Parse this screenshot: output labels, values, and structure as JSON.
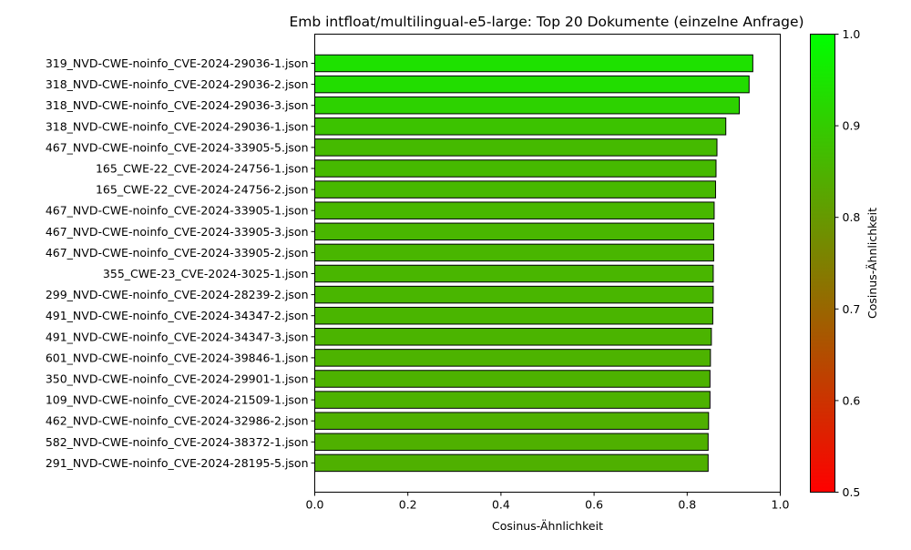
{
  "chart_data": {
    "type": "bar",
    "orientation": "horizontal",
    "title": "Emb intfloat/multilingual-e5-large: Top 20 Dokumente (einzelne Anfrage)",
    "xlabel": "Cosinus-Ähnlichkeit",
    "ylabel": "",
    "xlim": [
      0.0,
      1.0
    ],
    "xticks": [
      "0.0",
      "0.2",
      "0.4",
      "0.6",
      "0.8",
      "1.0"
    ],
    "grid": false,
    "categories": [
      "319_NVD-CWE-noinfo_CVE-2024-29036-1.json",
      "318_NVD-CWE-noinfo_CVE-2024-29036-2.json",
      "318_NVD-CWE-noinfo_CVE-2024-29036-3.json",
      "318_NVD-CWE-noinfo_CVE-2024-29036-1.json",
      "467_NVD-CWE-noinfo_CVE-2024-33905-5.json",
      "165_CWE-22_CVE-2024-24756-1.json",
      "165_CWE-22_CVE-2024-24756-2.json",
      "467_NVD-CWE-noinfo_CVE-2024-33905-1.json",
      "467_NVD-CWE-noinfo_CVE-2024-33905-3.json",
      "467_NVD-CWE-noinfo_CVE-2024-33905-2.json",
      "355_CWE-23_CVE-2024-3025-1.json",
      "299_NVD-CWE-noinfo_CVE-2024-28239-2.json",
      "491_NVD-CWE-noinfo_CVE-2024-34347-2.json",
      "491_NVD-CWE-noinfo_CVE-2024-34347-3.json",
      "601_NVD-CWE-noinfo_CVE-2024-39846-1.json",
      "350_NVD-CWE-noinfo_CVE-2024-29901-1.json",
      "109_NVD-CWE-noinfo_CVE-2024-21509-1.json",
      "462_NVD-CWE-noinfo_CVE-2024-32986-2.json",
      "582_NVD-CWE-noinfo_CVE-2024-38372-1.json",
      "291_NVD-CWE-noinfo_CVE-2024-28195-5.json"
    ],
    "values": [
      0.941,
      0.933,
      0.912,
      0.883,
      0.864,
      0.862,
      0.861,
      0.858,
      0.857,
      0.857,
      0.856,
      0.856,
      0.855,
      0.852,
      0.85,
      0.849,
      0.849,
      0.846,
      0.845,
      0.845
    ],
    "colorbar": {
      "label": "Cosinus-Ähnlichkeit",
      "range": [
        0.5,
        1.0
      ],
      "ticks": [
        "0.5",
        "0.6",
        "0.7",
        "0.8",
        "0.9",
        "1.0"
      ],
      "color_low": "#ff0000",
      "color_high": "#00ff00"
    },
    "bar_edge_color": "#000000"
  }
}
